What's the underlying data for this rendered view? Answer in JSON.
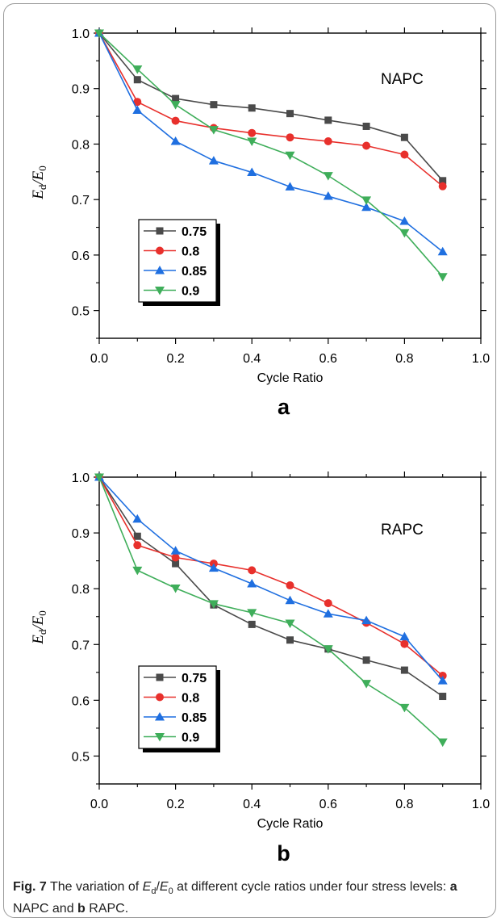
{
  "chart_data": [
    {
      "type": "line",
      "panel_letter": "a",
      "annotation": "NAPC",
      "xlabel": "Cycle Ratio",
      "ylabel_main": "E",
      "ylabel_num_sub": "d",
      "ylabel_den_sub": "0",
      "xlim": [
        0.0,
        1.0
      ],
      "ylim": [
        0.45,
        1.0
      ],
      "xticks": [
        "0.0",
        "0.2",
        "0.4",
        "0.6",
        "0.8",
        "1.0"
      ],
      "yticks": [
        "0.5",
        "0.6",
        "0.7",
        "0.8",
        "0.9",
        "1.0"
      ],
      "legend_position": "bottom-left",
      "x": [
        0.0,
        0.1,
        0.2,
        0.3,
        0.4,
        0.5,
        0.6,
        0.7,
        0.8,
        0.9
      ],
      "series": [
        {
          "name": "0.75",
          "marker": "square",
          "color": "#4a4a4a",
          "values": [
            1.0,
            0.916,
            0.882,
            0.871,
            0.865,
            0.855,
            0.843,
            0.832,
            0.812,
            0.734
          ]
        },
        {
          "name": "0.8",
          "marker": "circle",
          "color": "#e8302c",
          "values": [
            1.0,
            0.876,
            0.842,
            0.829,
            0.82,
            0.812,
            0.805,
            0.797,
            0.781,
            0.724
          ]
        },
        {
          "name": "0.85",
          "marker": "triangle-up",
          "color": "#1f6fe0",
          "values": [
            1.0,
            0.861,
            0.805,
            0.77,
            0.749,
            0.723,
            0.706,
            0.686,
            0.661,
            0.606
          ]
        },
        {
          "name": "0.9",
          "marker": "triangle-down",
          "color": "#3fae5a",
          "values": [
            1.0,
            0.935,
            0.871,
            0.826,
            0.805,
            0.78,
            0.743,
            0.699,
            0.64,
            0.561
          ]
        }
      ]
    },
    {
      "type": "line",
      "panel_letter": "b",
      "annotation": "RAPC",
      "xlabel": "Cycle Ratio",
      "ylabel_main": "E",
      "ylabel_num_sub": "d",
      "ylabel_den_sub": "0",
      "xlim": [
        0.0,
        1.0
      ],
      "ylim": [
        0.45,
        1.0
      ],
      "xticks": [
        "0.0",
        "0.2",
        "0.4",
        "0.6",
        "0.8",
        "1.0"
      ],
      "yticks": [
        "0.5",
        "0.6",
        "0.7",
        "0.8",
        "0.9",
        "1.0"
      ],
      "legend_position": "bottom-left",
      "x": [
        0.0,
        0.1,
        0.2,
        0.3,
        0.4,
        0.5,
        0.6,
        0.7,
        0.8,
        0.9
      ],
      "series": [
        {
          "name": "0.75",
          "marker": "square",
          "color": "#4a4a4a",
          "values": [
            1.0,
            0.894,
            0.845,
            0.771,
            0.736,
            0.708,
            0.692,
            0.672,
            0.654,
            0.607
          ]
        },
        {
          "name": "0.8",
          "marker": "circle",
          "color": "#e8302c",
          "values": [
            1.0,
            0.878,
            0.856,
            0.845,
            0.833,
            0.806,
            0.774,
            0.739,
            0.701,
            0.644
          ]
        },
        {
          "name": "0.85",
          "marker": "triangle-up",
          "color": "#1f6fe0",
          "values": [
            1.0,
            0.925,
            0.868,
            0.837,
            0.809,
            0.779,
            0.755,
            0.743,
            0.714,
            0.635
          ]
        },
        {
          "name": "0.9",
          "marker": "triangle-down",
          "color": "#3fae5a",
          "values": [
            1.0,
            0.833,
            0.801,
            0.773,
            0.757,
            0.738,
            0.692,
            0.63,
            0.587,
            0.525
          ]
        }
      ]
    }
  ],
  "caption": {
    "fig_label": "Fig. 7",
    "text_1": " The variation of ",
    "ed_main": "E",
    "ed_sub": "d",
    "slash": "/",
    "e0_main": "E",
    "e0_sub": "0",
    "text_2": " at different cycle ratios under four stress levels: ",
    "part_a": "a",
    "text_3": " NAPC and ",
    "part_b": "b",
    "text_4": " RAPC."
  }
}
